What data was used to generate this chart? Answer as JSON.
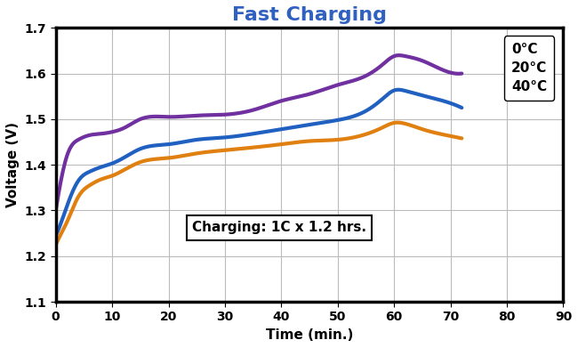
{
  "title": "Fast Charging",
  "xlabel": "Time (min.)",
  "ylabel": "Voltage (V)",
  "xlim": [
    0,
    90
  ],
  "ylim": [
    1.1,
    1.7
  ],
  "xticks": [
    0,
    10,
    20,
    30,
    40,
    50,
    60,
    70,
    80,
    90
  ],
  "yticks": [
    1.1,
    1.2,
    1.3,
    1.4,
    1.5,
    1.6,
    1.7
  ],
  "annotation": "Charging: 1C x 1.2 hrs.",
  "title_color": "#3060C0",
  "series": [
    {
      "label": "0°C",
      "color": "#7030A0",
      "linewidth": 3.0,
      "x": [
        0,
        1,
        2,
        4,
        6,
        8,
        10,
        12,
        15,
        20,
        25,
        30,
        35,
        40,
        45,
        50,
        55,
        58,
        60,
        62,
        65,
        70,
        72
      ],
      "y": [
        1.3,
        1.37,
        1.42,
        1.455,
        1.465,
        1.468,
        1.472,
        1.48,
        1.5,
        1.505,
        1.508,
        1.51,
        1.52,
        1.54,
        1.555,
        1.575,
        1.595,
        1.62,
        1.638,
        1.638,
        1.628,
        1.602,
        1.6
      ]
    },
    {
      "label": "20°C",
      "color": "#2060C0",
      "linewidth": 3.0,
      "x": [
        0,
        1,
        2,
        4,
        6,
        8,
        10,
        12,
        15,
        20,
        25,
        30,
        35,
        40,
        45,
        50,
        55,
        58,
        60,
        62,
        65,
        70,
        72
      ],
      "y": [
        1.245,
        1.275,
        1.31,
        1.365,
        1.385,
        1.395,
        1.403,
        1.415,
        1.435,
        1.445,
        1.455,
        1.46,
        1.468,
        1.478,
        1.488,
        1.498,
        1.518,
        1.545,
        1.563,
        1.562,
        1.552,
        1.535,
        1.525
      ]
    },
    {
      "label": "40°C",
      "color": "#E08010",
      "linewidth": 3.0,
      "x": [
        0,
        1,
        2,
        4,
        6,
        8,
        10,
        12,
        15,
        20,
        25,
        30,
        35,
        40,
        45,
        50,
        55,
        58,
        60,
        62,
        65,
        70,
        72
      ],
      "y": [
        1.225,
        1.25,
        1.275,
        1.33,
        1.355,
        1.368,
        1.376,
        1.388,
        1.406,
        1.415,
        1.425,
        1.432,
        1.438,
        1.445,
        1.452,
        1.455,
        1.467,
        1.482,
        1.492,
        1.49,
        1.478,
        1.463,
        1.458
      ]
    }
  ],
  "background_color": "#ffffff",
  "plot_bg_color": "#ffffff",
  "grid_color": "#bbbbbb",
  "title_fontsize": 16,
  "axis_label_fontsize": 11,
  "tick_fontsize": 10
}
